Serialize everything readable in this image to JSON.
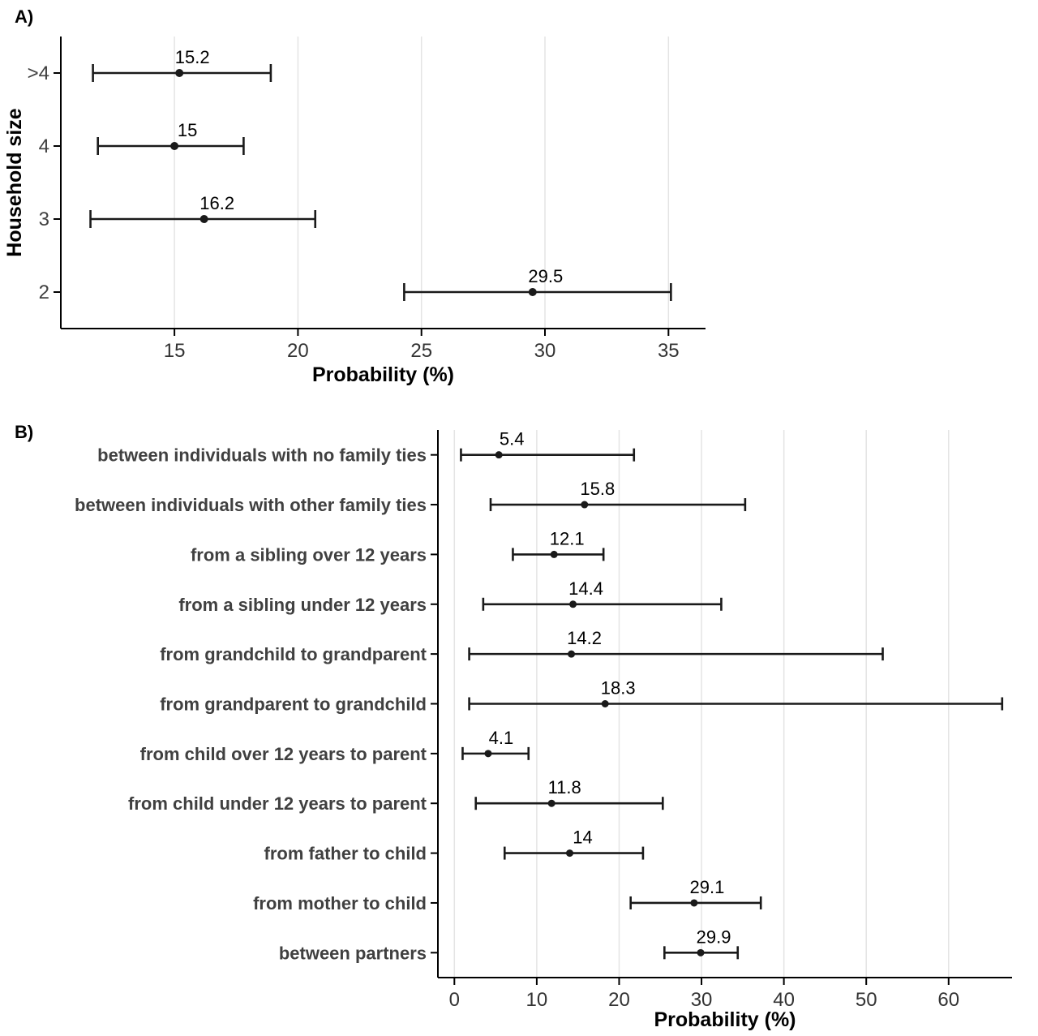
{
  "colors": {
    "bar": "#1a1a1a",
    "axis": "#000000",
    "grid": "#e4e4e4",
    "text": "#000000",
    "tick_text": "#333333",
    "category_text": "#404040"
  },
  "chart_data": [
    {
      "type": "errorbar",
      "panel_label": "A)",
      "title": "",
      "xlabel": "Probability (%)",
      "ylabel": "Household size",
      "categories": [
        ">4",
        "4",
        "3",
        "2"
      ],
      "values": [
        15.2,
        15,
        16.2,
        29.5
      ],
      "labels": [
        "15.2",
        "15",
        "16.2",
        "29.5"
      ],
      "ci_low": [
        11.7,
        11.9,
        11.6,
        24.3
      ],
      "ci_high": [
        18.9,
        17.8,
        20.7,
        35.1
      ],
      "xlim": [
        10.4,
        36.5
      ],
      "xticks": [
        15,
        20,
        25,
        30,
        35
      ],
      "xtick_labels": [
        "15",
        "20",
        "25",
        "30",
        "35"
      ],
      "grid": true,
      "legend": false
    },
    {
      "type": "errorbar",
      "panel_label": "B)",
      "title": "",
      "xlabel": "Probability (%)",
      "ylabel": "",
      "categories": [
        "between individuals with no family ties",
        "between individuals with other family ties",
        "from a sibling over 12 years",
        "from a sibling under 12 years",
        "from grandchild to grandparent",
        "from grandparent to grandchild",
        "from child over 12 years to parent",
        "from child under 12 years to parent",
        "from father to child",
        "from mother to child",
        "between partners"
      ],
      "values": [
        5.4,
        15.8,
        12.1,
        14.4,
        14.2,
        18.3,
        4.1,
        11.8,
        14,
        29.1,
        29.9
      ],
      "labels": [
        "5.4",
        "15.8",
        "12.1",
        "14.4",
        "14.2",
        "18.3",
        "4.1",
        "11.8",
        "14",
        "29.1",
        "29.9"
      ],
      "ci_low": [
        0.8,
        4.4,
        7.1,
        3.5,
        1.8,
        1.8,
        1.0,
        2.6,
        6.1,
        21.4,
        25.5
      ],
      "ci_high": [
        21.8,
        35.3,
        18.1,
        32.4,
        52.0,
        66.5,
        9.0,
        25.3,
        22.9,
        37.2,
        34.4
      ],
      "xlim": [
        -2,
        67.7
      ],
      "xticks": [
        0,
        10,
        20,
        30,
        40,
        50,
        60
      ],
      "xtick_labels": [
        "0",
        "10",
        "20",
        "30",
        "40",
        "50",
        "60"
      ],
      "grid": true,
      "legend": false
    }
  ]
}
